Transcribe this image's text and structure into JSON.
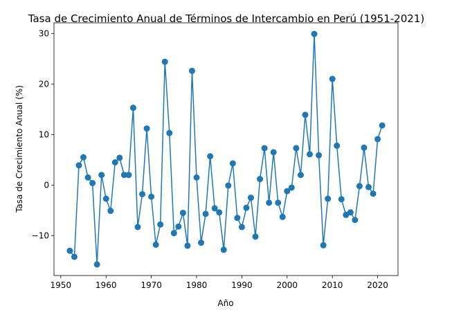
{
  "chart_data": {
    "type": "line",
    "title": "Tasa de Crecimiento Anual de Términos de Intercambio en Perú (1951-2021)",
    "xlabel": "Año",
    "ylabel": "Tasa de Crecimiento Anual (%)",
    "xlim": [
      1948.5,
      2024.5
    ],
    "ylim": [
      -17.9,
      32.1
    ],
    "xticks": [
      1950,
      1960,
      1970,
      1980,
      1990,
      2000,
      2010,
      2020
    ],
    "yticks": [
      -10,
      0,
      10,
      20,
      30
    ],
    "grid": false,
    "legend": "none",
    "color": "#1f77b4",
    "series": [
      {
        "x": [
          1952,
          1953,
          1954,
          1955,
          1956,
          1957,
          1958,
          1959,
          1960,
          1961,
          1962,
          1963,
          1964,
          1965,
          1966,
          1967,
          1968,
          1969,
          1970,
          1971,
          1972,
          1973,
          1974,
          1975,
          1976,
          1977,
          1978,
          1979,
          1980,
          1981,
          1982,
          1983,
          1984,
          1985,
          1986,
          1987,
          1988,
          1989,
          1990,
          1991,
          1992,
          1993,
          1994,
          1995,
          1996,
          1997,
          1998,
          1999,
          2000,
          2001,
          2002,
          2003,
          2004,
          2005,
          2006,
          2007,
          2008,
          2009,
          2010,
          2011,
          2012,
          2013,
          2014,
          2015,
          2016,
          2017,
          2018,
          2019,
          2020,
          2021
        ],
        "values": [
          -13.0,
          -14.2,
          3.9,
          5.5,
          1.5,
          0.4,
          -15.7,
          2.0,
          -2.7,
          -5.1,
          4.5,
          5.4,
          2.0,
          2.0,
          15.3,
          -8.3,
          -1.8,
          11.2,
          -2.3,
          -11.8,
          -7.8,
          24.4,
          10.3,
          -9.5,
          -8.2,
          -5.5,
          -12.0,
          22.6,
          1.5,
          -11.4,
          -5.7,
          5.7,
          -4.6,
          -5.4,
          -12.8,
          -0.1,
          4.3,
          -6.5,
          -8.3,
          -4.5,
          -2.5,
          -10.2,
          1.2,
          7.3,
          -3.5,
          6.5,
          -3.5,
          -6.3,
          -1.2,
          -0.5,
          7.3,
          2.0,
          13.9,
          6.1,
          29.9,
          5.9,
          -11.9,
          -2.7,
          21.0,
          7.8,
          -2.8,
          -5.9,
          -5.4,
          -6.9,
          -0.2,
          7.4,
          -0.4,
          -1.7,
          9.1,
          11.8
        ]
      }
    ]
  }
}
